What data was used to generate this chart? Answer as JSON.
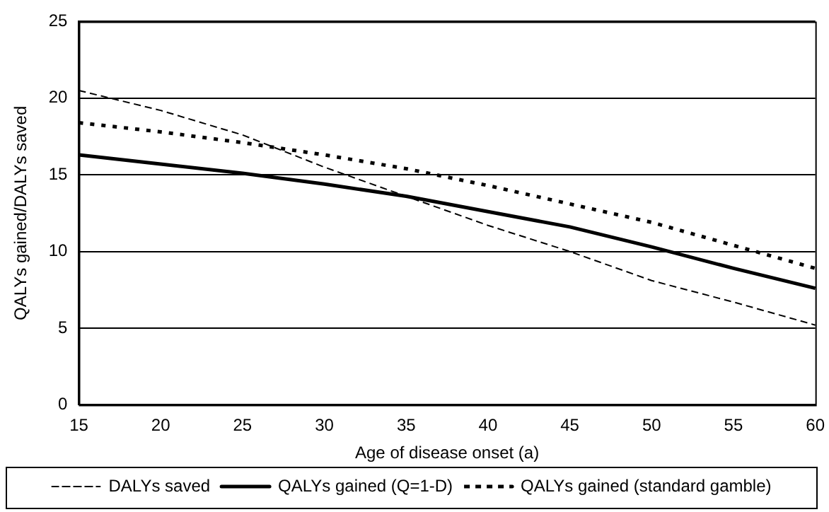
{
  "chart_data": {
    "type": "line",
    "xlabel": "Age of disease onset (a)",
    "ylabel": "QALYs gained/DALYs saved",
    "categories": [
      "15",
      "20",
      "25",
      "30",
      "35",
      "40",
      "45",
      "50",
      "55",
      "60"
    ],
    "series": [
      {
        "name": "DALYs saved",
        "color": "#000000",
        "line_style": "dashed",
        "values": [
          20.5,
          19.2,
          17.6,
          15.5,
          13.6,
          11.7,
          10.0,
          8.1,
          6.7,
          5.2
        ]
      },
      {
        "name": "QALYs gained (Q=1-D)",
        "color": "#000000",
        "line_style": "solid",
        "values": [
          16.3,
          15.7,
          15.1,
          14.4,
          13.6,
          12.6,
          11.6,
          10.3,
          8.9,
          7.6
        ]
      },
      {
        "name": "QALYs gained (standard gamble)",
        "color": "#000000",
        "line_style": "dotted",
        "values": [
          18.4,
          17.8,
          17.1,
          16.3,
          15.4,
          14.3,
          13.1,
          11.9,
          10.4,
          8.9
        ]
      }
    ],
    "ylim": [
      0,
      25
    ],
    "yticks": [
      0,
      5,
      10,
      15,
      20,
      25
    ],
    "grid": "y",
    "legend": "bottom",
    "marker": "none"
  }
}
